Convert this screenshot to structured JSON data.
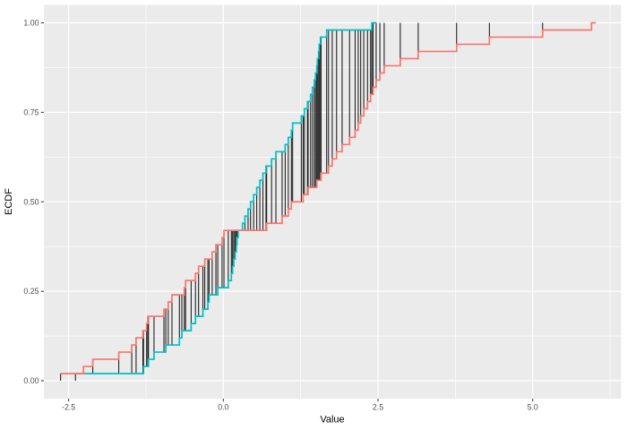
{
  "figure": {
    "x_axis_title": "Value",
    "y_axis_title": "ECDF"
  },
  "chart_data": {
    "type": "line",
    "subtype": "ecdf-step-comparison",
    "title": "",
    "xlabel": "Value",
    "ylabel": "ECDF",
    "xlim": [
      -2.9,
      6.43
    ],
    "ylim": [
      -0.05,
      1.05
    ],
    "grid": true,
    "legend_position": "none",
    "panel_background": "#EBEBEB",
    "grid_color": "#FFFFFF",
    "axis_text_color": "#4D4D4D",
    "axis_tick_color": "#333333",
    "x_major_ticks": [
      -2.5,
      0.0,
      2.5,
      5.0
    ],
    "x_tick_labels": [
      "-2.5",
      "0.0",
      "2.5",
      "5.0"
    ],
    "x_minor_ticks": [
      -1.25,
      1.25,
      3.75,
      6.25
    ],
    "y_major_ticks": [
      0.0,
      0.25,
      0.5,
      0.75,
      1.0
    ],
    "y_tick_labels": [
      "0.00",
      "0.25",
      "0.50",
      "0.75",
      "1.00"
    ],
    "y_minor_ticks": [
      0.125,
      0.375,
      0.625,
      0.875
    ],
    "series": [
      {
        "name": "ecdf-red",
        "color": "#F8766D",
        "n": 50,
        "sample": [
          -2.63,
          -2.26,
          -2.11,
          -1.69,
          -1.48,
          -1.41,
          -1.3,
          -1.24,
          -1.22,
          -0.96,
          -0.89,
          -0.83,
          -0.63,
          -0.61,
          -0.45,
          -0.4,
          -0.3,
          -0.18,
          -0.12,
          -0.02,
          0.01,
          0.7,
          0.95,
          1.05,
          1.1,
          1.29,
          1.37,
          1.51,
          1.58,
          1.7,
          1.76,
          1.83,
          1.92,
          2.04,
          2.13,
          2.18,
          2.22,
          2.27,
          2.33,
          2.38,
          2.42,
          2.47,
          2.53,
          2.6,
          2.86,
          3.15,
          3.77,
          4.3,
          5.16,
          5.95
        ]
      },
      {
        "name": "ecdf-cyan",
        "color": "#00BFC4",
        "n": 50,
        "sample": [
          -2.39,
          -1.29,
          -1.21,
          -1.12,
          -0.93,
          -0.71,
          -0.67,
          -0.52,
          -0.45,
          -0.33,
          -0.25,
          -0.23,
          -0.09,
          0.08,
          0.13,
          0.15,
          0.17,
          0.19,
          0.21,
          0.22,
          0.24,
          0.31,
          0.35,
          0.4,
          0.44,
          0.49,
          0.54,
          0.59,
          0.64,
          0.69,
          0.78,
          0.85,
          1.0,
          1.05,
          1.1,
          1.12,
          1.26,
          1.31,
          1.36,
          1.41,
          1.44,
          1.47,
          1.49,
          1.51,
          1.52,
          1.54,
          1.55,
          1.57,
          1.67,
          2.4
        ]
      }
    ],
    "difference_segments": {
      "description": "vertical segments between the two ECDF curves at every sample point of both series",
      "color": "#1A1A1A"
    }
  }
}
